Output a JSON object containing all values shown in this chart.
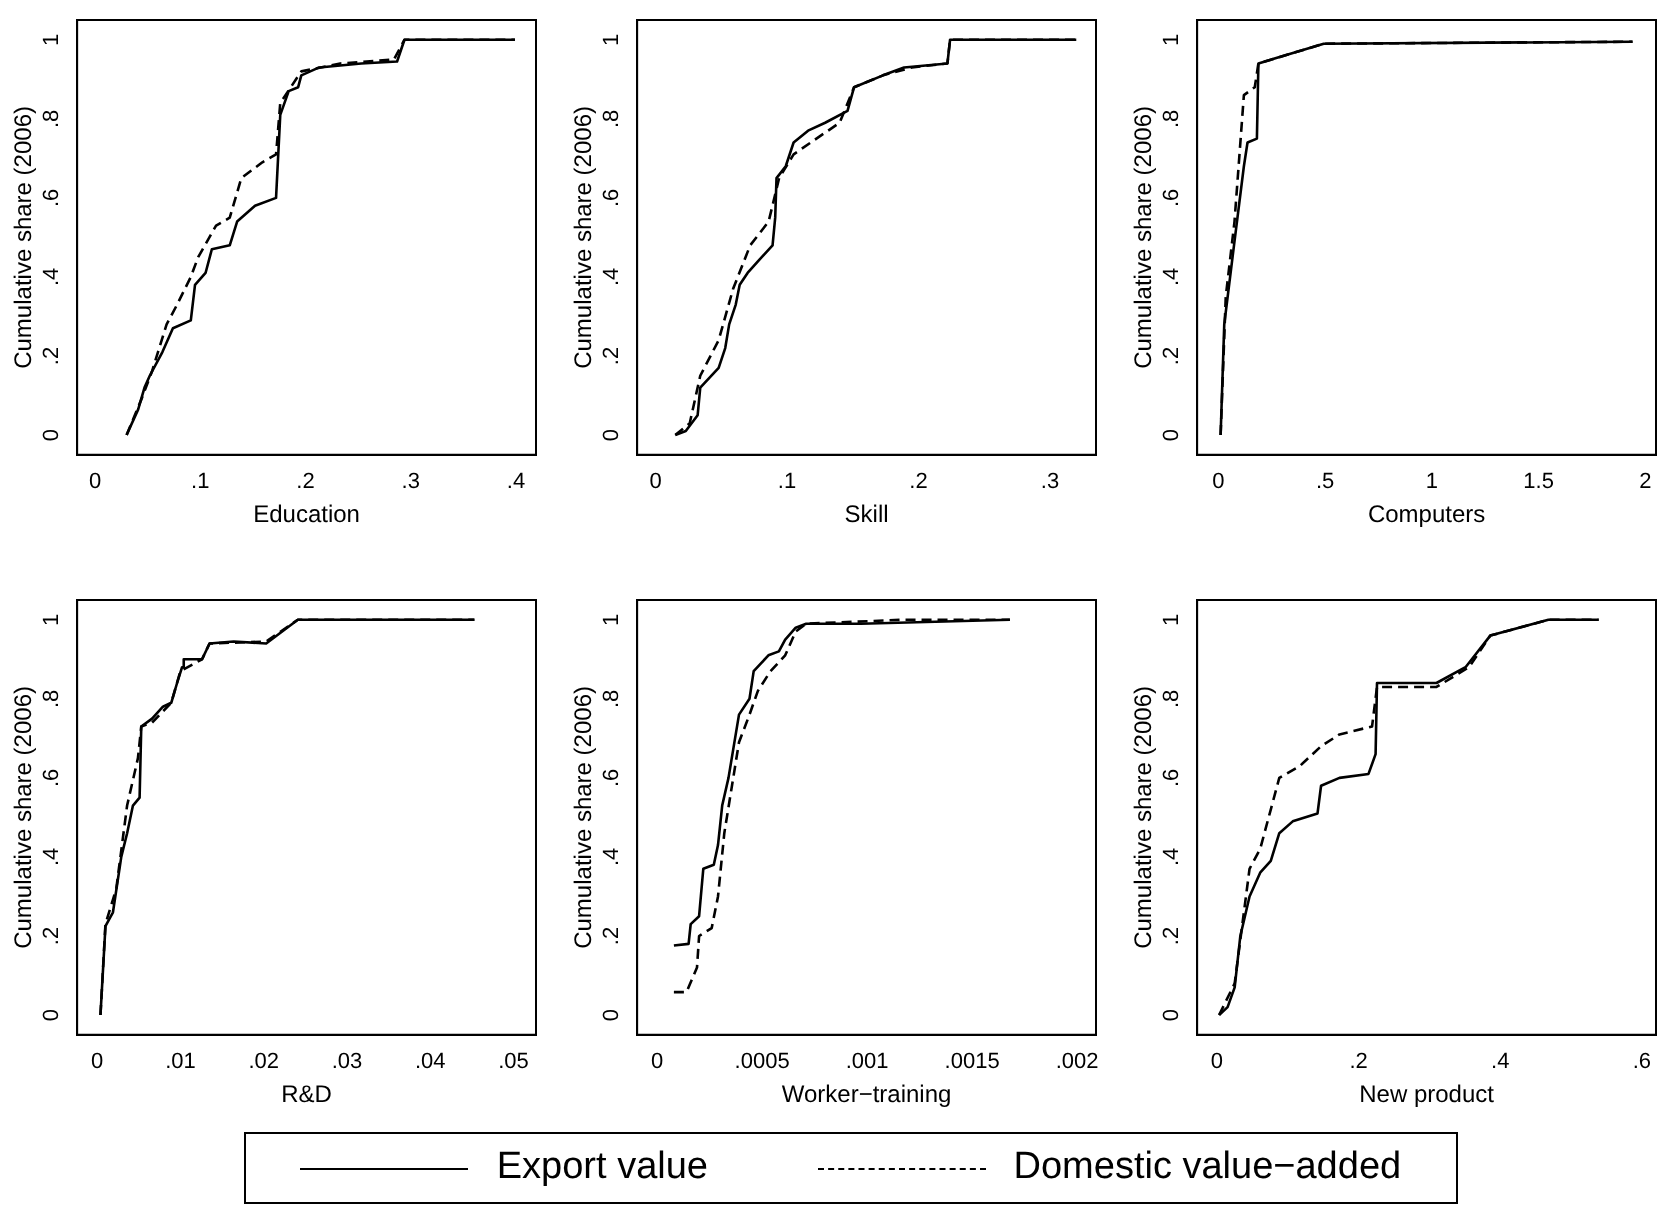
{
  "chart_data": [
    {
      "type": "line",
      "xlabel": "Education",
      "ylabel": "Cumulative share (2006)",
      "legend": "bottom",
      "xlim": [
        -0.017,
        0.419
      ],
      "ylim": [
        -0.05,
        1.05
      ],
      "xticks": [
        0,
        {
          "value": 0.1,
          "label": ".1"
        },
        {
          "value": 0.2,
          "label": ".2"
        },
        {
          "value": 0.3,
          "label": ".3"
        },
        {
          "value": 0.4,
          "label": ".4"
        }
      ],
      "yticks": [
        {
          "value": 0,
          "label": "0"
        },
        {
          "value": 0.2,
          "label": ".2"
        },
        {
          "value": 0.4,
          "label": ".4"
        },
        {
          "value": 0.6,
          "label": ".6"
        },
        {
          "value": 0.8,
          "label": ".8"
        },
        {
          "value": 1,
          "label": "1"
        }
      ],
      "series": [
        {
          "name": "Export value",
          "color": "#000000",
          "line_style": "solid",
          "x": [
            0.03,
            0.041,
            0.047,
            0.052,
            0.064,
            0.074,
            0.091,
            0.095,
            0.105,
            0.111,
            0.128,
            0.135,
            0.152,
            0.172,
            0.176,
            0.184,
            0.193,
            0.196,
            0.213,
            0.253,
            0.287,
            0.294,
            0.399
          ],
          "values": [
            0,
            0.065,
            0.12,
            0.15,
            0.21,
            0.27,
            0.29,
            0.38,
            0.41,
            0.47,
            0.48,
            0.54,
            0.58,
            0.6,
            0.81,
            0.87,
            0.88,
            0.91,
            0.93,
            0.94,
            0.945,
            1,
            1
          ]
        },
        {
          "name": "Domestic value−added",
          "color": "#000000",
          "line_style": "dashed",
          "x": [
            0.03,
            0.044,
            0.054,
            0.068,
            0.078,
            0.091,
            0.098,
            0.115,
            0.128,
            0.139,
            0.159,
            0.172,
            0.176,
            0.186,
            0.196,
            0.233,
            0.284,
            0.294,
            0.399
          ],
          "values": [
            0,
            0.09,
            0.16,
            0.28,
            0.33,
            0.4,
            0.45,
            0.53,
            0.55,
            0.65,
            0.69,
            0.71,
            0.84,
            0.88,
            0.92,
            0.94,
            0.95,
            1,
            1
          ]
        }
      ]
    },
    {
      "type": "line",
      "xlabel": "Skill",
      "ylabel": "Cumulative share (2006)",
      "xlim": [
        -0.014,
        0.335
      ],
      "ylim": [
        -0.05,
        1.05
      ],
      "xticks": [
        0,
        {
          "value": 0.1,
          "label": ".1"
        },
        {
          "value": 0.2,
          "label": ".2"
        },
        {
          "value": 0.3,
          "label": ".3"
        }
      ],
      "yticks": [
        {
          "value": 0,
          "label": "0"
        },
        {
          "value": 0.2,
          "label": ".2"
        },
        {
          "value": 0.4,
          "label": ".4"
        },
        {
          "value": 0.6,
          "label": ".6"
        },
        {
          "value": 0.8,
          "label": ".8"
        },
        {
          "value": 1,
          "label": "1"
        }
      ],
      "series": [
        {
          "color": "#000000",
          "line_style": "solid",
          "x": [
            0.015,
            0.023,
            0.032,
            0.034,
            0.048,
            0.053,
            0.056,
            0.061,
            0.064,
            0.07,
            0.078,
            0.089,
            0.091,
            0.092,
            0.099,
            0.105,
            0.116,
            0.129,
            0.146,
            0.151,
            0.173,
            0.189,
            0.222,
            0.224,
            0.32
          ],
          "values": [
            0,
            0.01,
            0.05,
            0.12,
            0.17,
            0.22,
            0.28,
            0.33,
            0.38,
            0.41,
            0.44,
            0.48,
            0.55,
            0.65,
            0.68,
            0.74,
            0.77,
            0.79,
            0.82,
            0.88,
            0.91,
            0.93,
            0.94,
            1,
            1
          ]
        },
        {
          "color": "#000000",
          "line_style": "dashed",
          "x": [
            0.015,
            0.026,
            0.034,
            0.048,
            0.059,
            0.072,
            0.086,
            0.094,
            0.105,
            0.118,
            0.14,
            0.151,
            0.173,
            0.195,
            0.222,
            0.224,
            0.32
          ],
          "values": [
            0,
            0.03,
            0.15,
            0.24,
            0.37,
            0.48,
            0.54,
            0.65,
            0.71,
            0.74,
            0.79,
            0.88,
            0.91,
            0.93,
            0.94,
            1,
            1
          ]
        }
      ]
    },
    {
      "type": "line",
      "xlabel": "Computers",
      "ylabel": "Cumulative share (2006)",
      "xlim": [
        -0.1,
        2.05
      ],
      "ylim": [
        -0.05,
        1.05
      ],
      "xticks": [
        0,
        {
          "value": 0.5,
          "label": ".5"
        },
        1,
        1.5,
        2
      ],
      "yticks": [
        {
          "value": 0,
          "label": "0"
        },
        {
          "value": 0.2,
          "label": ".2"
        },
        {
          "value": 0.4,
          "label": ".4"
        },
        {
          "value": 0.6,
          "label": ".6"
        },
        {
          "value": 0.8,
          "label": ".8"
        },
        {
          "value": 1,
          "label": "1"
        }
      ],
      "series": [
        {
          "color": "#000000",
          "line_style": "solid",
          "x": [
            0.01,
            0.027,
            0.075,
            0.119,
            0.136,
            0.18,
            0.187,
            0.493,
            1.94
          ],
          "values": [
            0,
            0.28,
            0.49,
            0.68,
            0.74,
            0.75,
            0.94,
            0.99,
            0.995
          ]
        },
        {
          "color": "#000000",
          "line_style": "dashed",
          "x": [
            0.01,
            0.034,
            0.075,
            0.119,
            0.17,
            0.187,
            0.493,
            1.94
          ],
          "values": [
            0,
            0.35,
            0.54,
            0.86,
            0.88,
            0.94,
            0.99,
            0.995
          ]
        }
      ]
    },
    {
      "type": "line",
      "xlabel": "R&D",
      "ylabel": "Cumulative share (2006)",
      "xlim": [
        -0.0024,
        0.0527
      ],
      "ylim": [
        -0.05,
        1.05
      ],
      "xticks": [
        0,
        {
          "value": 0.01,
          "label": ".01"
        },
        {
          "value": 0.02,
          "label": ".02"
        },
        {
          "value": 0.03,
          "label": ".03"
        },
        {
          "value": 0.04,
          "label": ".04"
        },
        {
          "value": 0.05,
          "label": ".05"
        }
      ],
      "yticks": [
        {
          "value": 0,
          "label": "0"
        },
        {
          "value": 0.2,
          "label": ".2"
        },
        {
          "value": 0.4,
          "label": ".4"
        },
        {
          "value": 0.6,
          "label": ".6"
        },
        {
          "value": 0.8,
          "label": ".8"
        },
        {
          "value": 1,
          "label": "1"
        }
      ],
      "series": [
        {
          "color": "#000000",
          "line_style": "solid",
          "x": [
            0.0004,
            0.001,
            0.0019,
            0.0029,
            0.0036,
            0.0043,
            0.0051,
            0.0053,
            0.0066,
            0.0079,
            0.0089,
            0.0096,
            0.0102,
            0.0104,
            0.0126,
            0.0135,
            0.0164,
            0.0203,
            0.0241,
            0.0453
          ],
          "values": [
            0,
            0.225,
            0.26,
            0.4,
            0.46,
            0.53,
            0.55,
            0.73,
            0.75,
            0.78,
            0.79,
            0.84,
            0.88,
            0.9,
            0.9,
            0.94,
            0.945,
            0.94,
            1,
            1
          ]
        },
        {
          "color": "#000000",
          "line_style": "dashed",
          "x": [
            0.0004,
            0.001,
            0.0023,
            0.0036,
            0.0049,
            0.0053,
            0.0066,
            0.0089,
            0.01,
            0.0126,
            0.0135,
            0.0203,
            0.0241,
            0.0453
          ],
          "values": [
            0,
            0.23,
            0.32,
            0.53,
            0.65,
            0.73,
            0.74,
            0.79,
            0.87,
            0.9,
            0.94,
            0.945,
            1,
            1
          ]
        }
      ]
    },
    {
      "type": "line",
      "xlabel": "Worker−training",
      "ylabel": "Cumulative share (2006)",
      "xlim": [
        -9.5e-05,
        0.00209
      ],
      "ylim": [
        -0.05,
        1.05
      ],
      "xticks": [
        0,
        {
          "value": 0.0005,
          "label": ".0005"
        },
        {
          "value": 0.001,
          "label": ".001"
        },
        {
          "value": 0.0015,
          "label": ".0015"
        },
        {
          "value": 0.002,
          "label": ".002"
        }
      ],
      "yticks": [
        {
          "value": 0,
          "label": "0"
        },
        {
          "value": 0.2,
          "label": ".2"
        },
        {
          "value": 0.4,
          "label": ".4"
        },
        {
          "value": 0.6,
          "label": ".6"
        },
        {
          "value": 0.8,
          "label": ".8"
        },
        {
          "value": 1,
          "label": "1"
        }
      ],
      "series": [
        {
          "color": "#000000",
          "line_style": "solid",
          "x": [
            8e-05,
            0.00015,
            0.00016,
            0.0002,
            0.00022,
            0.00027,
            0.00029,
            0.00031,
            0.00034,
            0.00039,
            0.00044,
            0.00046,
            0.00053,
            0.00058,
            0.00061,
            0.00066,
            0.00071,
            0.00097,
            0.00168
          ],
          "values": [
            0.176,
            0.18,
            0.23,
            0.25,
            0.37,
            0.38,
            0.43,
            0.53,
            0.6,
            0.76,
            0.8,
            0.87,
            0.91,
            0.92,
            0.95,
            0.98,
            0.99,
            0.99,
            1
          ]
        },
        {
          "color": "#000000",
          "line_style": "dashed",
          "x": [
            8e-05,
            0.00014,
            0.00019,
            0.0002,
            0.00026,
            0.00029,
            0.00032,
            0.00039,
            0.00044,
            0.00048,
            0.00054,
            0.00061,
            0.00066,
            0.00071,
            0.00117,
            0.00168
          ],
          "values": [
            0.058,
            0.058,
            0.12,
            0.2,
            0.22,
            0.3,
            0.46,
            0.69,
            0.76,
            0.82,
            0.87,
            0.91,
            0.97,
            0.99,
            1,
            1
          ]
        }
      ]
    },
    {
      "type": "line",
      "xlabel": "New product",
      "ylabel": "Cumulative share (2006)",
      "xlim": [
        -0.028,
        0.62
      ],
      "ylim": [
        -0.05,
        1.05
      ],
      "xticks": [
        0,
        {
          "value": 0.2,
          "label": ".2"
        },
        {
          "value": 0.4,
          "label": ".4"
        },
        {
          "value": 0.6,
          "label": ".6"
        }
      ],
      "yticks": [
        {
          "value": 0,
          "label": "0"
        },
        {
          "value": 0.2,
          "label": ".2"
        },
        {
          "value": 0.4,
          "label": ".4"
        },
        {
          "value": 0.6,
          "label": ".6"
        },
        {
          "value": 0.8,
          "label": ".8"
        },
        {
          "value": 1,
          "label": "1"
        }
      ],
      "series": [
        {
          "color": "#000000",
          "line_style": "solid",
          "x": [
            0.003,
            0.015,
            0.025,
            0.033,
            0.046,
            0.061,
            0.076,
            0.088,
            0.107,
            0.142,
            0.147,
            0.173,
            0.214,
            0.224,
            0.226,
            0.31,
            0.351,
            0.386,
            0.468,
            0.539
          ],
          "values": [
            0,
            0.02,
            0.07,
            0.2,
            0.3,
            0.36,
            0.39,
            0.46,
            0.49,
            0.51,
            0.58,
            0.6,
            0.61,
            0.66,
            0.84,
            0.84,
            0.88,
            0.96,
            1,
            1
          ]
        },
        {
          "color": "#000000",
          "line_style": "dashed",
          "x": [
            0.003,
            0.025,
            0.046,
            0.061,
            0.088,
            0.117,
            0.147,
            0.173,
            0.219,
            0.226,
            0.31,
            0.356,
            0.386,
            0.468,
            0.539
          ],
          "values": [
            0,
            0.08,
            0.37,
            0.42,
            0.6,
            0.63,
            0.68,
            0.71,
            0.73,
            0.83,
            0.83,
            0.88,
            0.96,
            1,
            1
          ]
        }
      ]
    }
  ]
}
